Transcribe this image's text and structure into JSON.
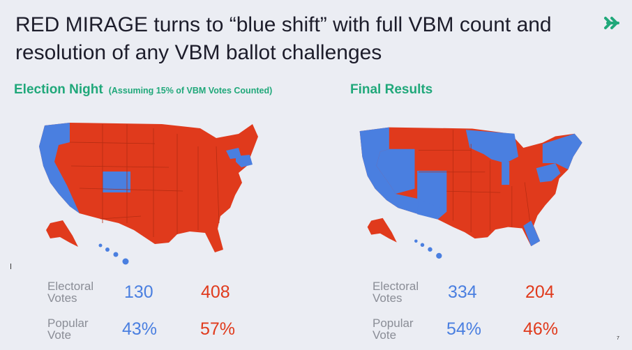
{
  "title": "RED MIRAGE turns to “blue shift” with full VBM count and resolution of any VBM ballot challenges",
  "colors": {
    "accent": "#20a87a",
    "blue": "#4a7fe0",
    "red": "#e03a1c",
    "label": "#8a8d96"
  },
  "election_night": {
    "heading": "Election Night",
    "note": "(Assuming 15% of VBM Votes Counted)",
    "electoral_label": "Electoral Votes",
    "electoral_blue": "130",
    "electoral_red": "408",
    "popular_label": "Popular Vote",
    "popular_blue": "43%",
    "popular_red": "57%"
  },
  "final_results": {
    "heading": "Final Results",
    "electoral_label": "Electoral Votes",
    "electoral_blue": "334",
    "electoral_red": "204",
    "popular_label": "Popular Vote",
    "popular_blue": "54%",
    "popular_red": "46%"
  },
  "page_number": "7"
}
